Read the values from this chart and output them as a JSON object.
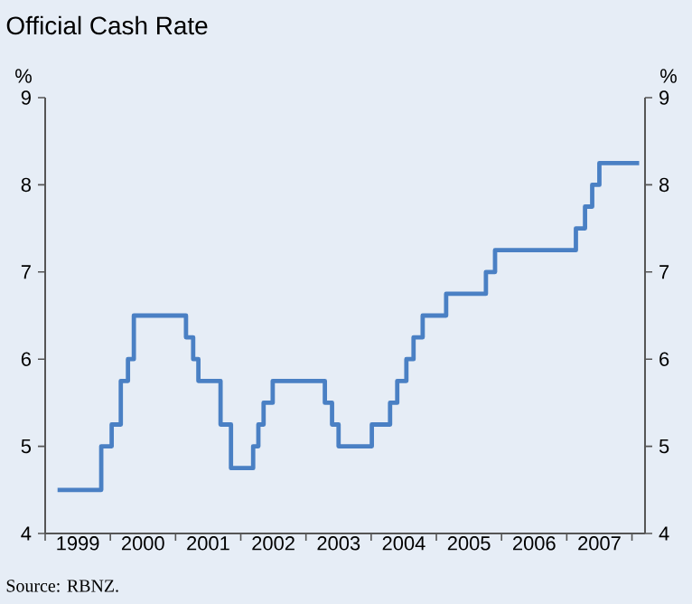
{
  "chart_data": {
    "type": "step",
    "title": "Official Cash Rate",
    "ylabel": "%",
    "y2label": "%",
    "annotations": [
      "Source: RBNZ."
    ],
    "x": [
      1999.19,
      1999.86,
      2000.02,
      2000.16,
      2000.27,
      2000.36,
      2001.16,
      2001.27,
      2001.35,
      2001.69,
      2001.85,
      2002.19,
      2002.27,
      2002.35,
      2002.49,
      2003.29,
      2003.4,
      2003.5,
      2004.01,
      2004.29,
      2004.4,
      2004.54,
      2004.65,
      2004.79,
      2005.15,
      2005.76,
      2005.9,
      2007.14,
      2007.28,
      2007.39,
      2007.5,
      2008.11
    ],
    "series": [
      {
        "color": "#4a80c4",
        "values": [
          4.5,
          5.0,
          5.25,
          5.75,
          6.0,
          6.5,
          6.25,
          6.0,
          5.75,
          5.25,
          4.75,
          5.0,
          5.25,
          5.5,
          5.75,
          5.5,
          5.25,
          5.0,
          5.25,
          5.5,
          5.75,
          6.0,
          6.25,
          6.5,
          6.75,
          7.0,
          7.25,
          7.5,
          7.75,
          8.0,
          8.25,
          8.25
        ]
      }
    ],
    "xlim": [
      1999,
      2008.2
    ],
    "ylim": [
      4,
      9
    ],
    "yticks": [
      4,
      5,
      6,
      7,
      8,
      9
    ],
    "y2lim": [
      4,
      9
    ],
    "y2ticks": [
      4,
      5,
      6,
      7,
      8,
      9
    ],
    "xticks": [
      {
        "value": 1999,
        "label": null
      },
      {
        "value": 1999.5,
        "label": "1999"
      },
      {
        "value": 2000,
        "label": null
      },
      {
        "value": 2000.5,
        "label": "2000"
      },
      {
        "value": 2001,
        "label": null
      },
      {
        "value": 2001.5,
        "label": "2001"
      },
      {
        "value": 2002,
        "label": null
      },
      {
        "value": 2002.5,
        "label": "2002"
      },
      {
        "value": 2003,
        "label": null
      },
      {
        "value": 2003.5,
        "label": "2003"
      },
      {
        "value": 2004,
        "label": null
      },
      {
        "value": 2004.5,
        "label": "2004"
      },
      {
        "value": 2005,
        "label": null
      },
      {
        "value": 2005.5,
        "label": "2005"
      },
      {
        "value": 2006,
        "label": null
      },
      {
        "value": 2006.5,
        "label": "2006"
      },
      {
        "value": 2007,
        "label": null
      },
      {
        "value": 2007.5,
        "label": "2007"
      },
      {
        "value": 2008,
        "label": null
      }
    ],
    "grid": false
  }
}
